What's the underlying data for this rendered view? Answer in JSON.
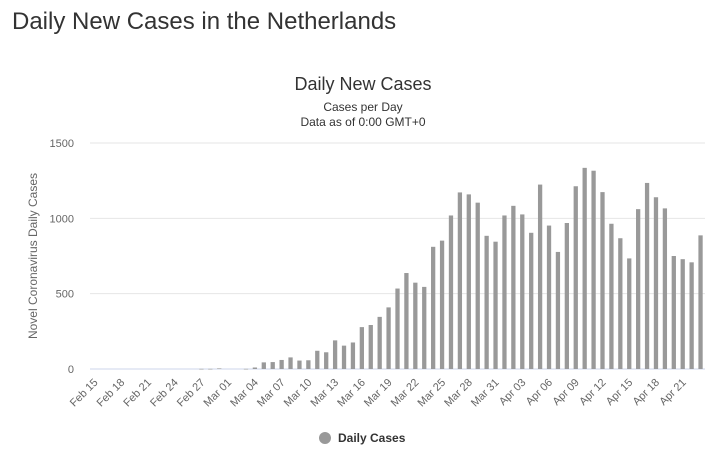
{
  "page_title": "Daily New Cases in the Netherlands",
  "chart_data": {
    "type": "bar",
    "title": "Daily New Cases",
    "subtitle": "Cases per Day",
    "subtitle2": "Data as of 0:00 GMT+0",
    "xlabel": "",
    "ylabel": "Novel Coronavirus Daily Cases",
    "ylim": [
      0,
      1500
    ],
    "y_ticks": [
      0,
      500,
      1000,
      1500
    ],
    "x_tick_labels": [
      "Feb 15",
      "Feb 18",
      "Feb 21",
      "Feb 24",
      "Feb 27",
      "Mar 01",
      "Mar 04",
      "Mar 07",
      "Mar 10",
      "Mar 13",
      "Mar 16",
      "Mar 19",
      "Mar 22",
      "Mar 25",
      "Mar 28",
      "Mar 31",
      "Apr 03",
      "Apr 06",
      "Apr 09",
      "Apr 12",
      "Apr 15",
      "Apr 18",
      "Apr 21"
    ],
    "x_tick_every": 3,
    "grid": true,
    "legend_position": "bottom-center",
    "bar_color": "#999999",
    "categories": [
      "Feb 15",
      "Feb 16",
      "Feb 17",
      "Feb 18",
      "Feb 19",
      "Feb 20",
      "Feb 21",
      "Feb 22",
      "Feb 23",
      "Feb 24",
      "Feb 25",
      "Feb 26",
      "Feb 27",
      "Feb 28",
      "Feb 29",
      "Mar 01",
      "Mar 02",
      "Mar 03",
      "Mar 04",
      "Mar 05",
      "Mar 06",
      "Mar 07",
      "Mar 08",
      "Mar 09",
      "Mar 10",
      "Mar 11",
      "Mar 12",
      "Mar 13",
      "Mar 14",
      "Mar 15",
      "Mar 16",
      "Mar 17",
      "Mar 18",
      "Mar 19",
      "Mar 20",
      "Mar 21",
      "Mar 22",
      "Mar 23",
      "Mar 24",
      "Mar 25",
      "Mar 26",
      "Mar 27",
      "Mar 28",
      "Mar 29",
      "Mar 30",
      "Mar 31",
      "Apr 01",
      "Apr 02",
      "Apr 03",
      "Apr 04",
      "Apr 05",
      "Apr 06",
      "Apr 07",
      "Apr 08",
      "Apr 09",
      "Apr 10",
      "Apr 11",
      "Apr 12",
      "Apr 13",
      "Apr 14",
      "Apr 15",
      "Apr 16",
      "Apr 17",
      "Apr 18",
      "Apr 19",
      "Apr 20",
      "Apr 21",
      "Apr 22",
      "Apr 23"
    ],
    "series": [
      {
        "name": "Daily Cases",
        "values": [
          0,
          0,
          0,
          0,
          0,
          0,
          0,
          0,
          0,
          0,
          0,
          0,
          1,
          1,
          4,
          0,
          0,
          1,
          10,
          44,
          46,
          60,
          77,
          56,
          58,
          121,
          111,
          190,
          155,
          176,
          278,
          292,
          346,
          409,
          534,
          637,
          573,
          545,
          811,
          852,
          1019,
          1172,
          1159,
          1104,
          884,
          845,
          1019,
          1083,
          1026,
          904,
          1224,
          952,
          777,
          969,
          1213,
          1335,
          1316,
          1174,
          964,
          868,
          734,
          1061,
          1235,
          1140,
          1066,
          750,
          729,
          708,
          887
        ]
      }
    ]
  }
}
